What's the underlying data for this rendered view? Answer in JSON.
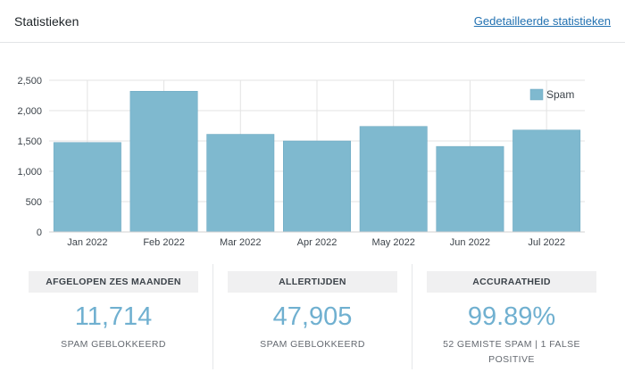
{
  "header": {
    "title": "Statistieken",
    "detail_link": "Gedetailleerde statistieken"
  },
  "chart_data": {
    "type": "bar",
    "categories": [
      "Jan 2022",
      "Feb 2022",
      "Mar 2022",
      "Apr 2022",
      "May 2022",
      "Jun 2022",
      "Jul 2022"
    ],
    "series": [
      {
        "name": "Spam",
        "values": [
          1475,
          2320,
          1610,
          1500,
          1740,
          1410,
          1680
        ]
      }
    ],
    "yticks": [
      "0",
      "500",
      "1,000",
      "1,500",
      "2,000",
      "2,500"
    ],
    "ylim": [
      0,
      2500
    ],
    "title": "",
    "xlabel": "",
    "ylabel": "",
    "legend": "top-right",
    "grid": true,
    "bar_color": "#7fb9cf"
  },
  "stats": [
    {
      "label": "AFGELOPEN ZES MAANDEN",
      "value": "11,714",
      "sub": "SPAM GEBLOKKEERD"
    },
    {
      "label": "ALLERTIJDEN",
      "value": "47,905",
      "sub": "SPAM GEBLOKKEERD"
    },
    {
      "label": "ACCURAATHEID",
      "value": "99.89%",
      "sub": "52 GEMISTE SPAM | 1 FALSE POSITIVE"
    }
  ]
}
